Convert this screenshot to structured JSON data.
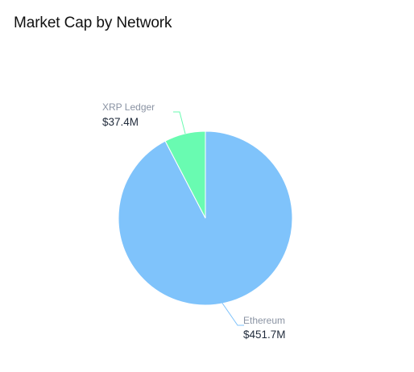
{
  "title": "Market Cap by Network",
  "colors": {
    "ethereum": "#7fc3fb",
    "xrp": "#69fbb1"
  },
  "chart_data": {
    "type": "pie",
    "title": "Market Cap by Network",
    "slices": [
      {
        "label": "XRP Ledger",
        "value_label": "$37.4M",
        "value": 37.4,
        "color": "#69fbb1"
      },
      {
        "label": "Ethereum",
        "value_label": "$451.7M",
        "value": 451.7,
        "color": "#7fc3fb"
      }
    ],
    "unit": "$M",
    "legend": "none"
  }
}
